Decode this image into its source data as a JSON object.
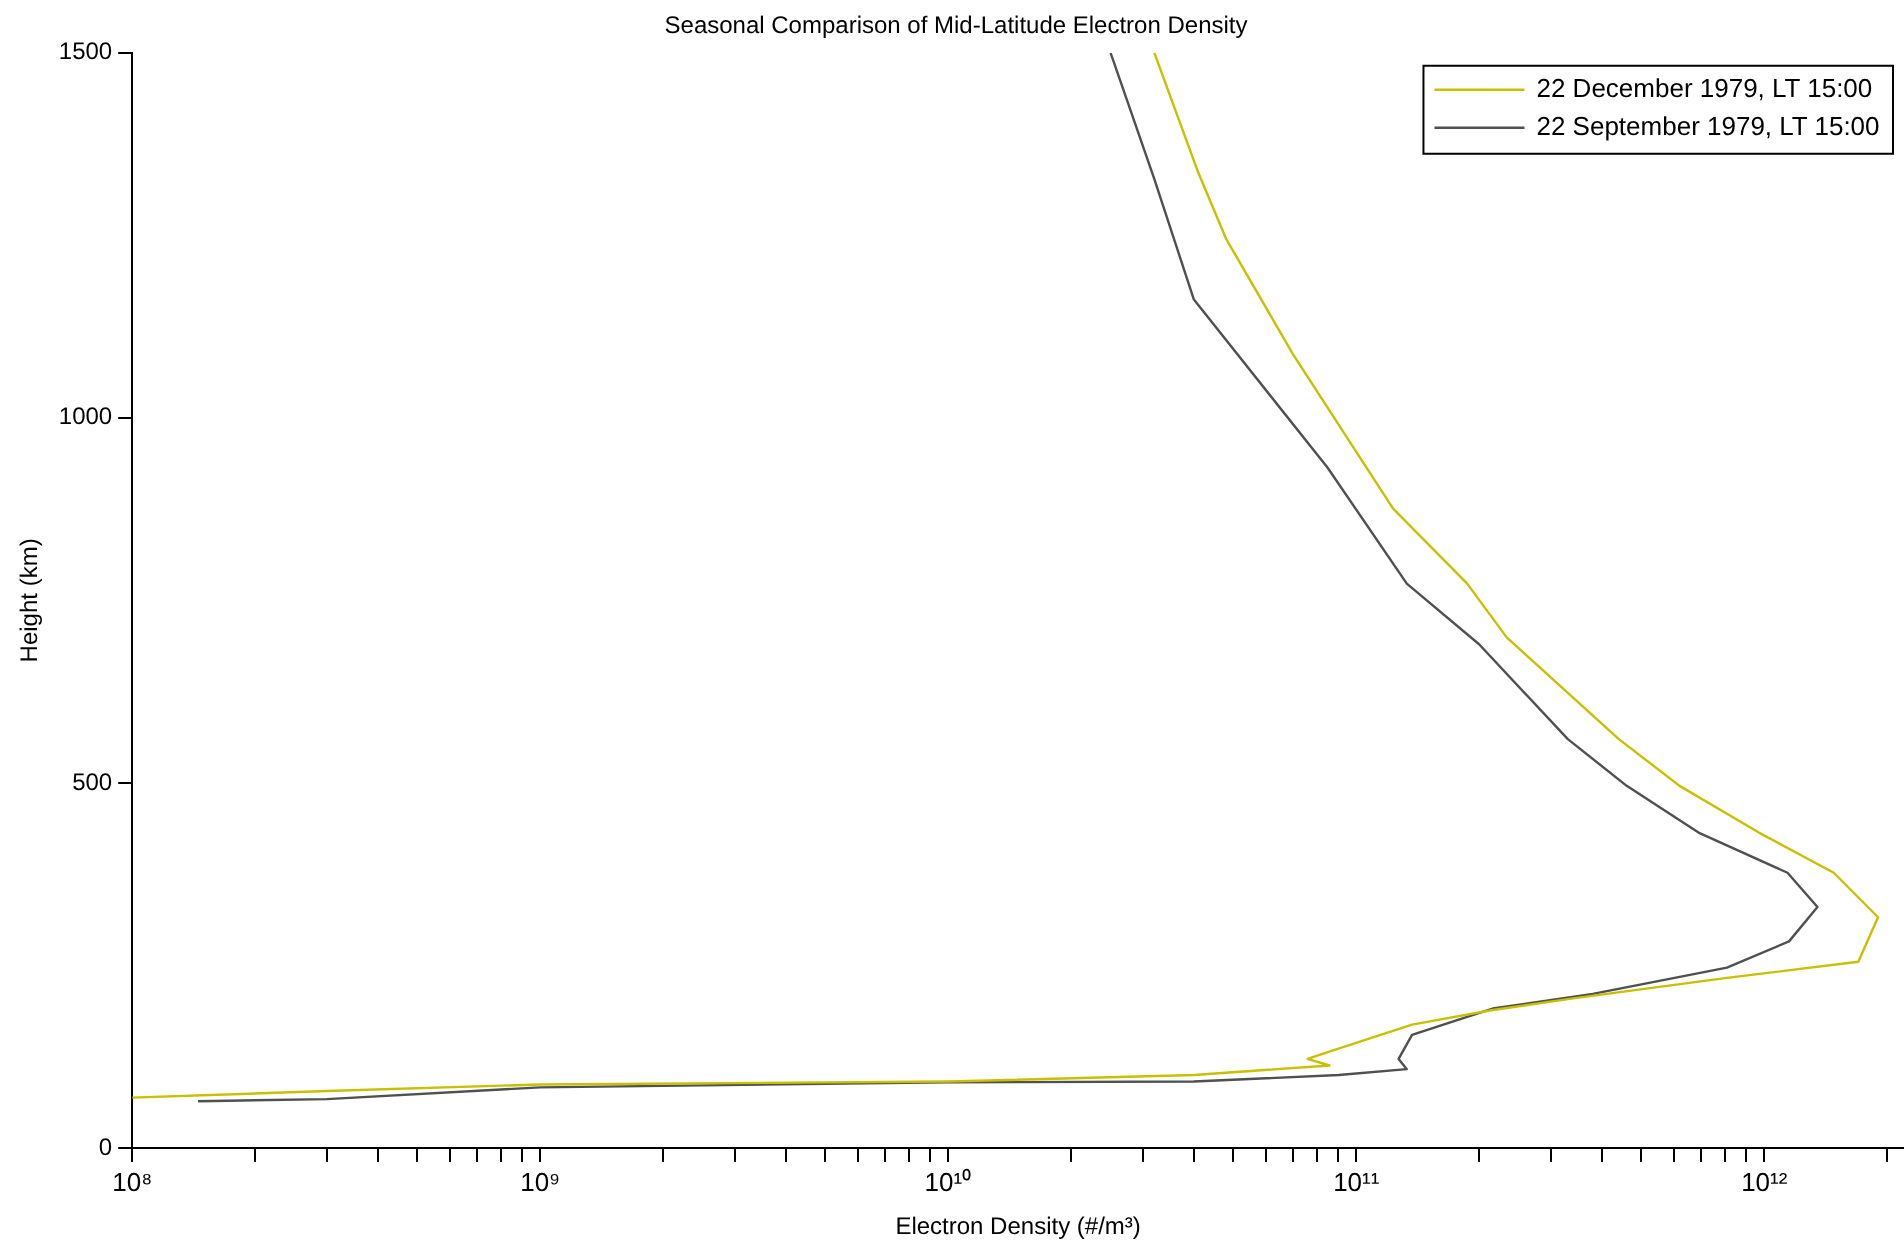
{
  "chart_data": {
    "type": "line",
    "title": "Seasonal Comparison of Mid-Latitude Electron Density",
    "xlabel": "Electron Density (#/m³)",
    "ylabel": "Height (km)",
    "log": "x",
    "grid": false,
    "legend": "top right",
    "marker": "none",
    "line_style": "solid",
    "xlim": [
      100000000.0,
      2200000000000.0
    ],
    "ylim": [
      0,
      1500
    ],
    "yticks": [
      0,
      500,
      1000,
      1500
    ],
    "xticks": [
      {
        "value": 100000000.0,
        "label": "10⁸"
      },
      {
        "value": 200000000.0,
        "label": null
      },
      {
        "value": 300000000.0,
        "label": null
      },
      {
        "value": 400000000.0,
        "label": null
      },
      {
        "value": 500000000.0,
        "label": null
      },
      {
        "value": 600000000.0,
        "label": null
      },
      {
        "value": 700000000.0,
        "label": null
      },
      {
        "value": 800000000.0,
        "label": null
      },
      {
        "value": 900000000.0,
        "label": null
      },
      {
        "value": 1000000000.0,
        "label": "10⁹"
      },
      {
        "value": 2000000000.0,
        "label": null
      },
      {
        "value": 3000000000.0,
        "label": null
      },
      {
        "value": 4000000000.0,
        "label": null
      },
      {
        "value": 5000000000.0,
        "label": null
      },
      {
        "value": 6000000000.0,
        "label": null
      },
      {
        "value": 7000000000.0,
        "label": null
      },
      {
        "value": 8000000000.0,
        "label": null
      },
      {
        "value": 9000000000.0,
        "label": null
      },
      {
        "value": 10000000000.0,
        "label": "10¹⁰"
      },
      {
        "value": 20000000000.0,
        "label": null
      },
      {
        "value": 30000000000.0,
        "label": null
      },
      {
        "value": 40000000000.0,
        "label": null
      },
      {
        "value": 50000000000.0,
        "label": null
      },
      {
        "value": 60000000000.0,
        "label": null
      },
      {
        "value": 70000000000.0,
        "label": null
      },
      {
        "value": 80000000000.0,
        "label": null
      },
      {
        "value": 90000000000.0,
        "label": null
      },
      {
        "value": 100000000000.0,
        "label": "10¹¹"
      },
      {
        "value": 200000000000.0,
        "label": null
      },
      {
        "value": 300000000000.0,
        "label": null
      },
      {
        "value": 400000000000.0,
        "label": null
      },
      {
        "value": 500000000000.0,
        "label": null
      },
      {
        "value": 600000000000.0,
        "label": null
      },
      {
        "value": 700000000000.0,
        "label": null
      },
      {
        "value": 800000000000.0,
        "label": null
      },
      {
        "value": 900000000000.0,
        "label": null
      },
      {
        "value": 1000000000000.0,
        "label": "10¹²"
      },
      {
        "value": 2000000000000.0,
        "label": null
      }
    ],
    "series": [
      {
        "name": "22 December 1979, LT 15:00",
        "color": "#c8c000",
        "x": [
          100000000.0,
          300000000.0,
          1000000000.0,
          10000000000.0,
          40000000000.0,
          86000000000.0,
          76000000000.0,
          87000000000.0,
          137000000000.0,
          216000000000.0,
          340000000000.0,
          810000000000.0,
          1700000000000.0,
          1900000000000.0,
          1480000000000.0,
          970000000000.0,
          620000000000.0,
          440000000000.0,
          234000000000.0,
          187000000000.0,
          123000000000.0,
          70000000000.0,
          48000000000.0,
          41000000000.0,
          32000000000.0
        ],
        "values": [
          69,
          78,
          87,
          91,
          100,
          113,
          122,
          133,
          169,
          189,
          205,
          233,
          255,
          316,
          377,
          432,
          496,
          560,
          699,
          773,
          876,
          1087,
          1245,
          1336,
          1500
        ]
      },
      {
        "name": "22 September 1979, LT 15:00",
        "color": "#505050",
        "x": [
          145000000.0,
          300000000.0,
          1000000000.0,
          10000000000.0,
          40000000000.0,
          90600000000.0,
          133000000000.0,
          127000000000.0,
          137000000000.0,
          216000000000.0,
          380000000000.0,
          810000000000.0,
          1150000000000.0,
          1350000000000.0,
          1140000000000.0,
          690000000000.0,
          460000000000.0,
          330000000000.0,
          200000000000.0,
          133000000000.0,
          85000000000.0,
          40000000000.0,
          32000000000.0,
          25000000000.0
        ],
        "values": [
          64,
          67,
          83,
          90,
          91,
          100,
          108,
          122,
          155,
          191,
          211,
          247,
          283,
          330,
          377,
          432,
          496,
          560,
          690,
          773,
          932,
          1162,
          1327,
          1500
        ]
      }
    ]
  }
}
